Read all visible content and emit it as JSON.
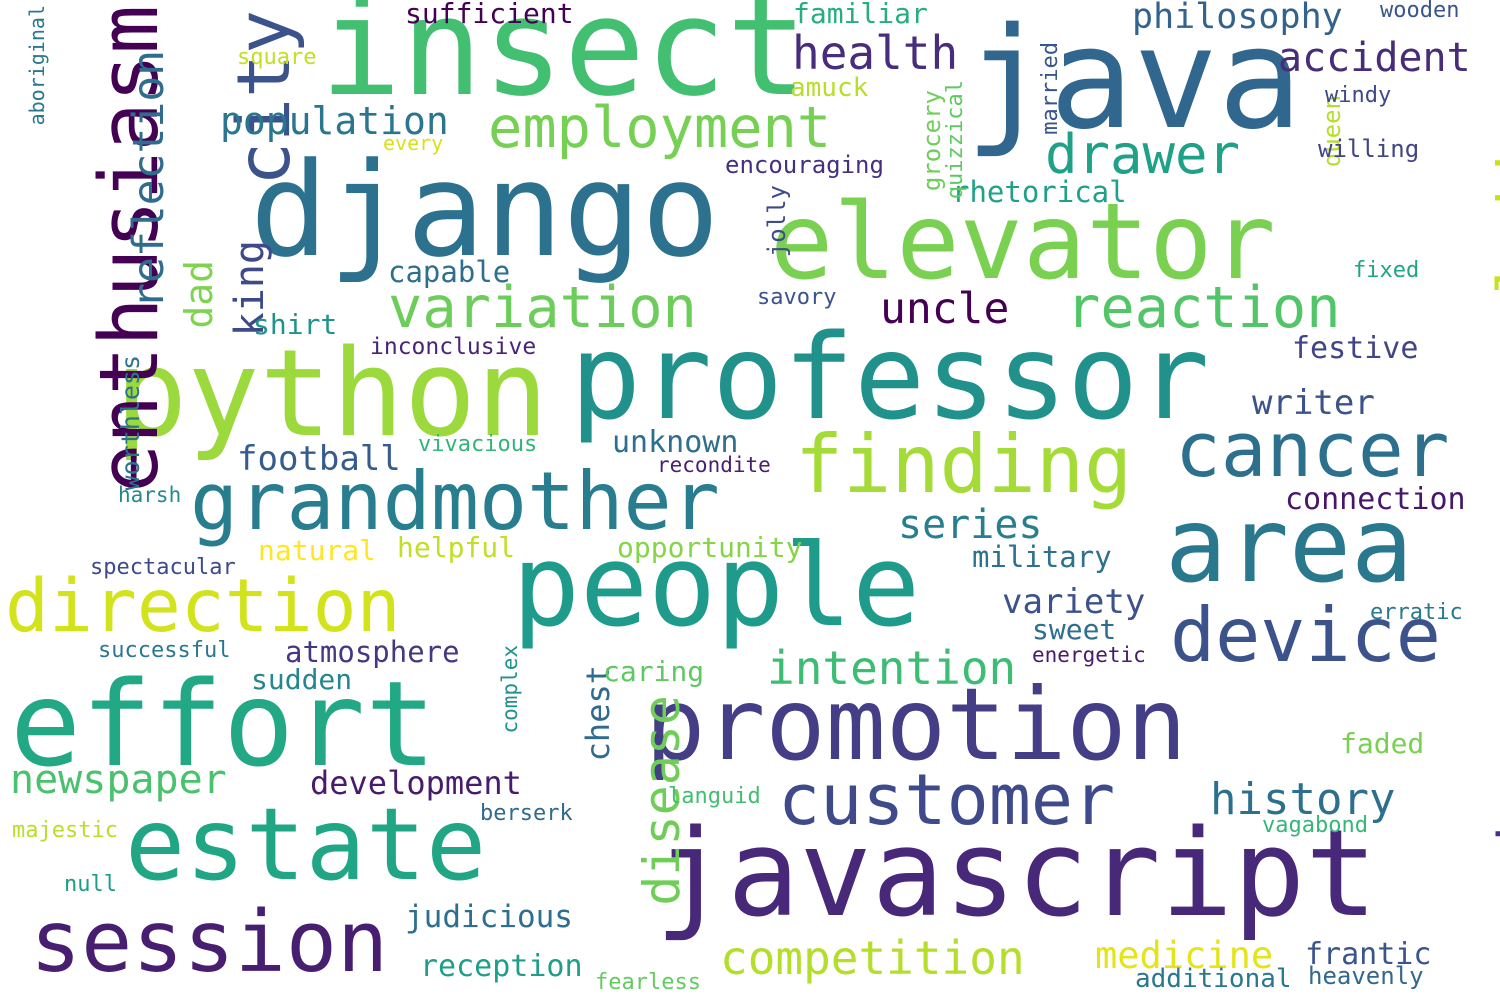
{
  "words": [
    {
      "text": "insect",
      "color": "#43bf71"
    },
    {
      "text": "java",
      "color": "#31668e"
    },
    {
      "text": "django",
      "color": "#2c718e"
    },
    {
      "text": "elevator",
      "color": "#7ad151"
    },
    {
      "text": "python",
      "color": "#9bd93c"
    },
    {
      "text": "professor",
      "color": "#21918c"
    },
    {
      "text": "people",
      "color": "#1e9b8a"
    },
    {
      "text": "area",
      "color": "#2a788e"
    },
    {
      "text": "effort",
      "color": "#22a884"
    },
    {
      "text": "promotion",
      "color": "#433e85"
    },
    {
      "text": "javascript",
      "color": "#482878"
    },
    {
      "text": "estate",
      "color": "#21a685"
    },
    {
      "text": "session",
      "color": "#481f70"
    },
    {
      "text": "grandmother",
      "color": "#287d8e"
    },
    {
      "text": "finding",
      "color": "#a5db36"
    },
    {
      "text": "cancer",
      "color": "#2d708e"
    },
    {
      "text": "device",
      "color": "#3b528b"
    },
    {
      "text": "customer",
      "color": "#3e4a89"
    },
    {
      "text": "direction",
      "color": "#d2e21b"
    },
    {
      "text": "enthusiasm",
      "color": "#440154"
    },
    {
      "text": "city",
      "color": "#3b528b"
    },
    {
      "text": "ladder",
      "color": "#c8e020"
    },
    {
      "text": "weakness",
      "color": "#46327e"
    },
    {
      "text": "disease",
      "color": "#6ece58"
    },
    {
      "text": "employment",
      "color": "#75d054"
    },
    {
      "text": "variation",
      "color": "#6ccd5a"
    },
    {
      "text": "reaction",
      "color": "#52c569"
    },
    {
      "text": "drawer",
      "color": "#1fa188"
    },
    {
      "text": "health",
      "color": "#472d7b"
    },
    {
      "text": "accident",
      "color": "#472c7a"
    },
    {
      "text": "philosophy",
      "color": "#33638d"
    },
    {
      "text": "population",
      "color": "#2a768e"
    },
    {
      "text": "reflection",
      "color": "#2f6c8e"
    },
    {
      "text": "newspaper",
      "color": "#4ac16d"
    },
    {
      "text": "intention",
      "color": "#3dbc74"
    },
    {
      "text": "competition",
      "color": "#b5de2b"
    },
    {
      "text": "history",
      "color": "#2d708e"
    },
    {
      "text": "uncle",
      "color": "#440154"
    },
    {
      "text": "series",
      "color": "#277f8e"
    },
    {
      "text": "king",
      "color": "#3e4989"
    },
    {
      "text": "dad",
      "color": "#7fd34e"
    },
    {
      "text": "football",
      "color": "#365c8d"
    },
    {
      "text": "development",
      "color": "#481b6d"
    },
    {
      "text": "medicine",
      "color": "#e5e419"
    },
    {
      "text": "reception",
      "color": "#1f9e89"
    },
    {
      "text": "judicious",
      "color": "#2e6e8e"
    },
    {
      "text": "variety",
      "color": "#3b528b"
    },
    {
      "text": "chest",
      "color": "#2f6b8e"
    },
    {
      "text": "atmosphere",
      "color": "#453781"
    },
    {
      "text": "writer",
      "color": "#3b528b"
    },
    {
      "text": "connection",
      "color": "#481769"
    },
    {
      "text": "military",
      "color": "#2c718e"
    },
    {
      "text": "frantic",
      "color": "#3a548c"
    },
    {
      "text": "unknown",
      "color": "#2e6e8e"
    },
    {
      "text": "festive",
      "color": "#414487"
    },
    {
      "text": "sufficient",
      "color": "#440154"
    },
    {
      "text": "familiar",
      "color": "#27ad81"
    },
    {
      "text": "rhetorical",
      "color": "#1fa088"
    },
    {
      "text": "capable",
      "color": "#2e6f8e"
    },
    {
      "text": "shirt",
      "color": "#20928c"
    },
    {
      "text": "sweet",
      "color": "#2e6e8e"
    },
    {
      "text": "opportunity",
      "color": "#86d549"
    },
    {
      "text": "helpful",
      "color": "#c0df25"
    },
    {
      "text": "natural",
      "color": "#fde725"
    },
    {
      "text": "caring",
      "color": "#5ec962"
    },
    {
      "text": "sudden",
      "color": "#24868e"
    },
    {
      "text": "faded",
      "color": "#7ad151"
    },
    {
      "text": "additional",
      "color": "#2a788e"
    },
    {
      "text": "heavenly",
      "color": "#31688e"
    },
    {
      "text": "worthless",
      "color": "#2c738e"
    },
    {
      "text": "grocery",
      "color": "#6ece58"
    },
    {
      "text": "quizzical",
      "color": "#5ec962"
    },
    {
      "text": "jolly",
      "color": "#3e4a89"
    },
    {
      "text": "queen",
      "color": "#b5de2b"
    },
    {
      "text": "amuck",
      "color": "#b8de29"
    },
    {
      "text": "married",
      "color": "#39568c"
    },
    {
      "text": "windy",
      "color": "#3e4989"
    },
    {
      "text": "willing",
      "color": "#414487"
    },
    {
      "text": "wooden",
      "color": "#39568c"
    },
    {
      "text": "square",
      "color": "#c2df23"
    },
    {
      "text": "every",
      "color": "#d8e219"
    },
    {
      "text": "aboriginal",
      "color": "#2a788e"
    },
    {
      "text": "encouraging",
      "color": "#46307e"
    },
    {
      "text": "savory",
      "color": "#3b528b"
    },
    {
      "text": "fixed",
      "color": "#20a486"
    },
    {
      "text": "inconclusive",
      "color": "#482475"
    },
    {
      "text": "vivacious",
      "color": "#31b57b"
    },
    {
      "text": "recondite",
      "color": "#481f70"
    },
    {
      "text": "harsh",
      "color": "#23898e"
    },
    {
      "text": "spectacular",
      "color": "#3e4a89"
    },
    {
      "text": "successful",
      "color": "#2a788e"
    },
    {
      "text": "complex",
      "color": "#21918c"
    },
    {
      "text": "energetic",
      "color": "#481a6c"
    },
    {
      "text": "erratic",
      "color": "#2a788e"
    },
    {
      "text": "languid",
      "color": "#42be71"
    },
    {
      "text": "berserk",
      "color": "#306a8e"
    },
    {
      "text": "majestic",
      "color": "#bade28"
    },
    {
      "text": "null",
      "color": "#1e9c89"
    },
    {
      "text": "vagabond",
      "color": "#35b779"
    },
    {
      "text": "fearless",
      "color": "#63cb5f"
    }
  ]
}
